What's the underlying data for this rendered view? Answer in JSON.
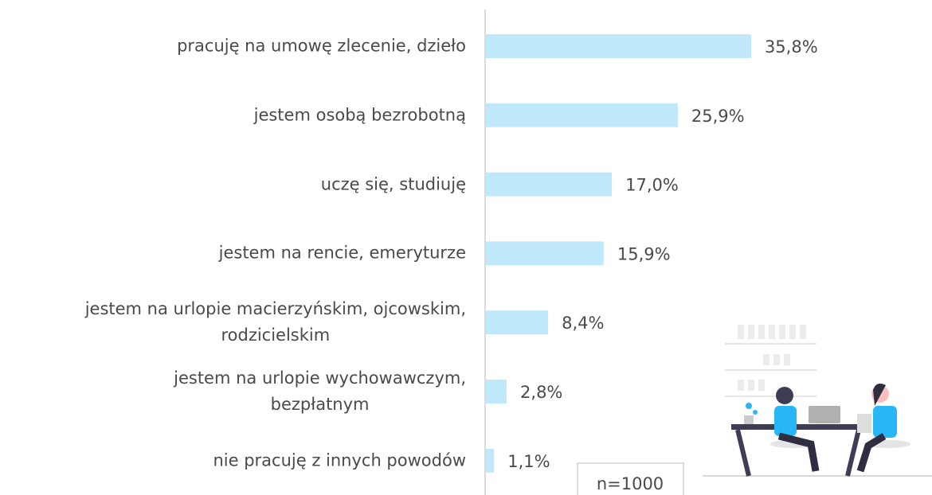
{
  "chart_data": {
    "type": "bar",
    "orientation": "horizontal",
    "categories": [
      "pracuję na umowę zlecenie, dzieło",
      "jestem osobą bezrobotną",
      "uczę się, studiuję",
      "jestem na rencie, emeryturze",
      "jestem na urlopie macierzyńskim, ojcowskim,\nrodzicielskim",
      "jestem na urlopie wychowawczym,\nbezpłatnym",
      "nie pracuję z innych powodów"
    ],
    "values": [
      35.8,
      25.9,
      17.0,
      15.9,
      8.4,
      2.8,
      1.1
    ],
    "value_labels": [
      "35,8%",
      "25,9%",
      "17,0%",
      "15,9%",
      "8,4%",
      "2,8%",
      "1,1%"
    ],
    "color": "#bfe9fb",
    "xlim": [
      0,
      40
    ],
    "note": "n=1000"
  }
}
